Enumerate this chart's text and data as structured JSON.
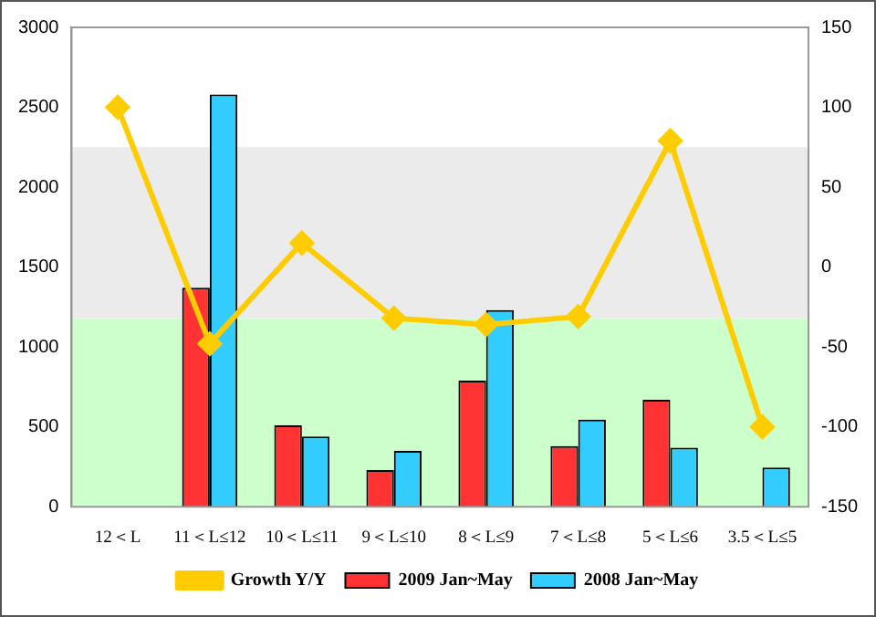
{
  "chart_data": {
    "type": "bar",
    "categories": [
      "12＜L",
      "11＜L≤12",
      "10＜L≤11",
      "9＜L≤10",
      "8＜L≤9",
      "7＜L≤8",
      "5＜L≤6",
      "3.5＜L≤5"
    ],
    "series": [
      {
        "name": "2009 Jan~May",
        "color": "#ff3333",
        "values": [
          0,
          1370,
          510,
          230,
          790,
          380,
          670,
          0
        ]
      },
      {
        "name": "2008 Jan~May",
        "color": "#33ccff",
        "values": [
          0,
          2580,
          440,
          350,
          1230,
          545,
          370,
          245
        ]
      },
      {
        "name": "Growth Y/Y",
        "type": "line",
        "axis": "y2",
        "color": "#ffcc00",
        "marker": "diamond",
        "values": [
          100,
          -48,
          15,
          -32,
          -36,
          -31,
          79,
          -100
        ]
      }
    ],
    "ylim": [
      0,
      3000
    ],
    "yticks": [
      0,
      500,
      1000,
      1500,
      2000,
      2500,
      3000
    ],
    "y2lim": [
      -150,
      150
    ],
    "y2ticks": [
      -150,
      -100,
      -50,
      0,
      50,
      100,
      150
    ],
    "bands": [
      {
        "axis": "y",
        "from": 0,
        "to": 1180,
        "color": "#ccffcc"
      },
      {
        "axis": "y",
        "from": 1180,
        "to": 2250,
        "color": "#ebebeb"
      }
    ],
    "grid": false,
    "legend": "bottom"
  }
}
